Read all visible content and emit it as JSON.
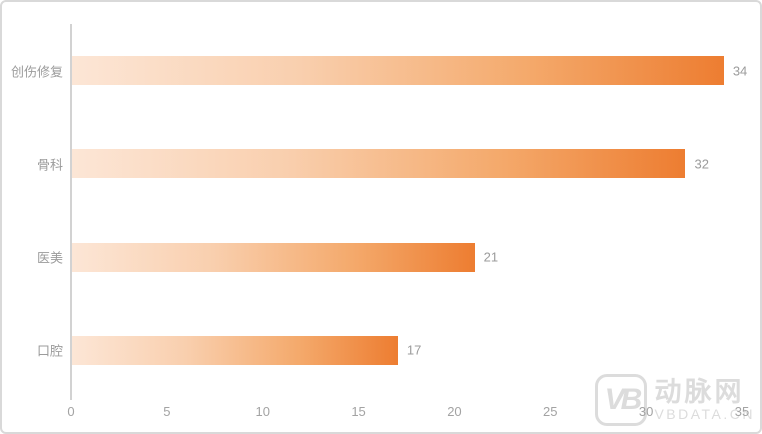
{
  "chart_data": {
    "type": "bar",
    "orientation": "horizontal",
    "title": "",
    "xlabel": "",
    "ylabel": "",
    "categories": [
      "创伤修复",
      "骨科",
      "医美",
      "口腔"
    ],
    "values": [
      34,
      32,
      21,
      17
    ],
    "x_ticks": [
      0,
      5,
      10,
      15,
      20,
      25,
      30,
      35
    ],
    "xlim": [
      0,
      35
    ],
    "grid": false,
    "legend": false,
    "value_labels_shown": true,
    "bar_gradient_start": "#fce6d6",
    "bar_gradient_end": "#ed7d31",
    "text_color": "#9b9b9b",
    "axis_line_color": "#d2d2d2"
  },
  "watermark": {
    "logo_text": "VB",
    "brand": "动脉网",
    "site": "VBDATA.CN",
    "color": "#d6d6d6"
  }
}
